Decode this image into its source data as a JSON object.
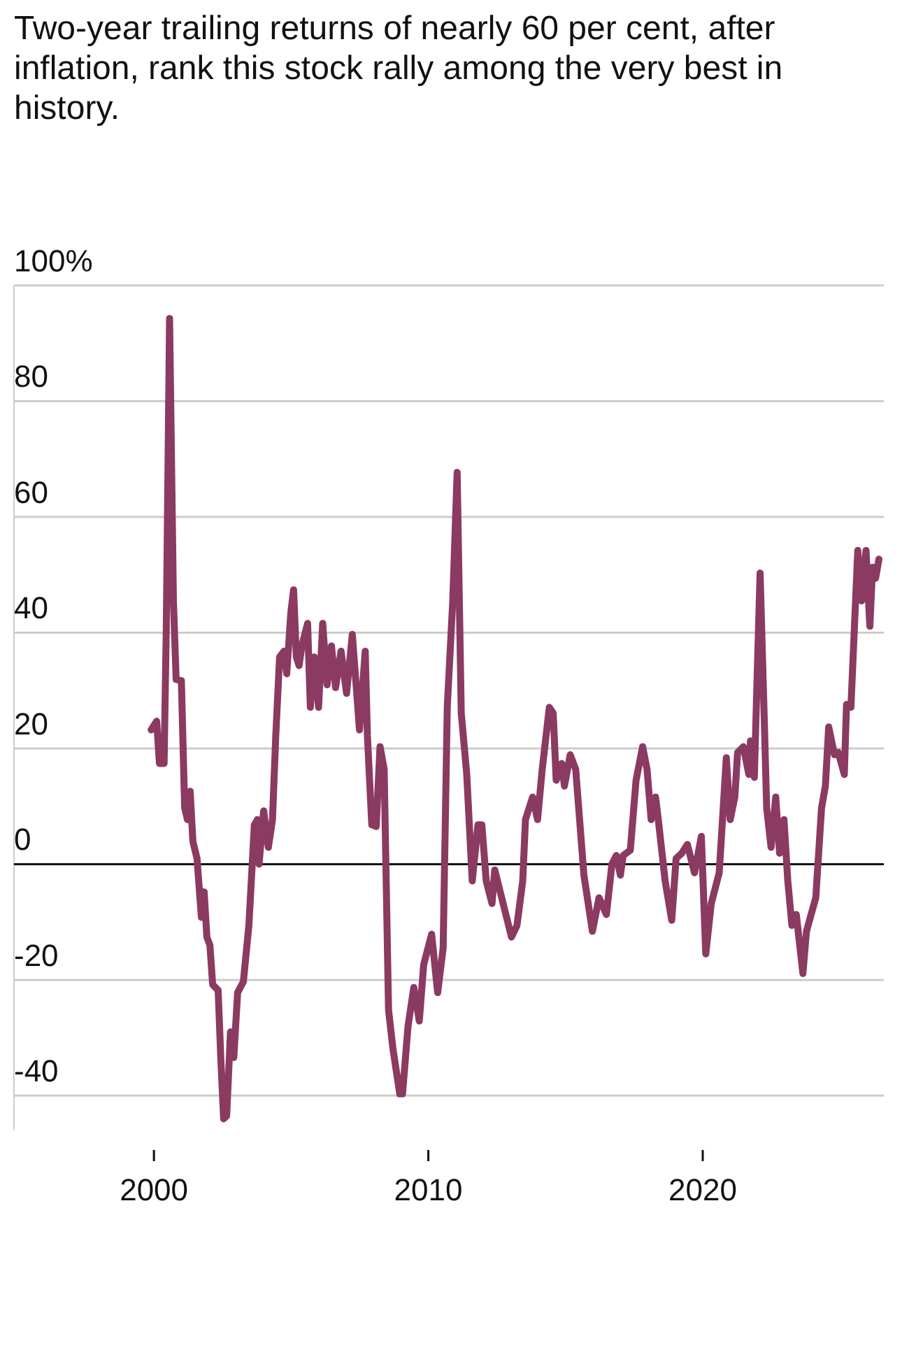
{
  "chart_data": {
    "type": "line",
    "title": "Two-year trailing returns of nearly 60 per cent, after inflation, rank this stock rally among the very best in history.",
    "xlim": [
      1994.9,
      2026.6
    ],
    "xticks": [
      2000,
      2010,
      2020
    ],
    "ylim": [
      -46,
      100
    ],
    "yticks": [
      {
        "value": 100,
        "label": "100%"
      },
      80,
      60,
      40,
      20,
      0,
      -20,
      -40
    ],
    "grid": "y",
    "ref_lines": [
      {
        "axis": "y",
        "value": 0,
        "color": "#111111"
      }
    ],
    "series": [
      {
        "color": "#8b3a62",
        "x": [
          1999.9,
          2000.1,
          2000.2,
          2000.37,
          2000.45,
          2000.57,
          2000.71,
          2000.81,
          2001.0,
          2001.12,
          2001.22,
          2001.32,
          2001.42,
          2001.57,
          2001.73,
          2001.83,
          2001.93,
          2002.04,
          2002.14,
          2002.34,
          2002.44,
          2002.54,
          2002.65,
          2002.79,
          2002.91,
          2003.05,
          2003.26,
          2003.46,
          2003.66,
          2003.77,
          2003.83,
          2004.0,
          2004.17,
          2004.32,
          2004.44,
          2004.58,
          2004.74,
          2004.84,
          2004.99,
          2005.09,
          2005.19,
          2005.29,
          2005.39,
          2005.6,
          2005.7,
          2005.84,
          2006.0,
          2006.15,
          2006.31,
          2006.47,
          2006.62,
          2006.82,
          2007.02,
          2007.23,
          2007.49,
          2007.7,
          2007.78,
          2007.94,
          2008.1,
          2008.24,
          2008.39,
          2008.55,
          2008.71,
          2008.96,
          2009.06,
          2009.26,
          2009.47,
          2009.67,
          2009.83,
          2010.12,
          2010.34,
          2010.54,
          2010.69,
          2010.89,
          2011.05,
          2011.2,
          2011.4,
          2011.6,
          2011.81,
          2011.95,
          2012.11,
          2012.32,
          2012.42,
          2012.62,
          2013.03,
          2013.23,
          2013.44,
          2013.54,
          2013.8,
          2013.98,
          2014.15,
          2014.41,
          2014.55,
          2014.66,
          2014.86,
          2014.96,
          2015.17,
          2015.37,
          2015.67,
          2015.98,
          2016.22,
          2016.49,
          2016.69,
          2016.85,
          2017.0,
          2017.1,
          2017.36,
          2017.57,
          2017.81,
          2017.97,
          2018.12,
          2018.28,
          2018.38,
          2018.63,
          2018.87,
          2019.03,
          2019.24,
          2019.44,
          2019.7,
          2019.95,
          2020.11,
          2020.31,
          2020.6,
          2020.86,
          2021.0,
          2021.17,
          2021.27,
          2021.48,
          2021.68,
          2021.74,
          2021.88,
          2022.09,
          2022.23,
          2022.33,
          2022.49,
          2022.66,
          2022.8,
          2022.96,
          2023.1,
          2023.25,
          2023.41,
          2023.65,
          2023.78,
          2024.12,
          2024.33,
          2024.47,
          2024.59,
          2024.8,
          2024.94,
          2025.16,
          2025.24,
          2025.4,
          2025.65,
          2025.79,
          2025.95,
          2026.09,
          2026.19,
          2026.3,
          2026.42
        ],
        "values": [
          23.2,
          24.7,
          17.4,
          17.4,
          40.6,
          94.3,
          45.5,
          31.9,
          31.7,
          9.7,
          7.7,
          12.6,
          3.9,
          1,
          -9.2,
          -4.8,
          -12.6,
          -14,
          -20.8,
          -21.8,
          -33.9,
          -44,
          -43.5,
          -29,
          -33.4,
          -22.2,
          -20.3,
          -10.6,
          6.8,
          7.7,
          0,
          9.2,
          2.9,
          7.7,
          22.2,
          35.8,
          36.8,
          32.9,
          43.5,
          47.4,
          35.8,
          34.3,
          37.7,
          41.6,
          27.1,
          35.8,
          27.1,
          41.6,
          31,
          37.7,
          30.5,
          36.8,
          29.5,
          39.7,
          23.2,
          36.8,
          22.2,
          6.8,
          6.5,
          20.3,
          16.4,
          -25.2,
          -31.9,
          -39.7,
          -39.7,
          -28,
          -21.3,
          -27.1,
          -17.4,
          -12.1,
          -22.2,
          -14.5,
          27.1,
          45.5,
          67.7,
          26.1,
          15.5,
          -2.9,
          6.8,
          6.8,
          -2.9,
          -6.8,
          -1,
          -4.8,
          -12.6,
          -10.6,
          -2.9,
          7.7,
          11.6,
          7.7,
          16.4,
          27.1,
          26.1,
          14.5,
          17.4,
          13.5,
          18.9,
          16.4,
          -1.9,
          -11.6,
          -5.8,
          -8.7,
          0,
          1.5,
          -1.9,
          1.5,
          2.4,
          14.5,
          20.3,
          16.4,
          7.7,
          11.6,
          7.7,
          -2.9,
          -9.7,
          1,
          1.9,
          3.4,
          -1.5,
          4.8,
          -15.5,
          -6.8,
          -1.5,
          18.4,
          7.7,
          11.6,
          19.3,
          20.3,
          15.5,
          21.3,
          15,
          50.3,
          27.1,
          9.7,
          2.9,
          11.6,
          1.9,
          7.7,
          -2.9,
          -10.6,
          -8.7,
          -18.9,
          -11.6,
          -5.8,
          9.7,
          13.5,
          23.7,
          18.9,
          19.3,
          15.5,
          27.6,
          27.1,
          54.2,
          45.5,
          54.2,
          41.1,
          51.3,
          49.4,
          52.7
        ]
      }
    ]
  }
}
